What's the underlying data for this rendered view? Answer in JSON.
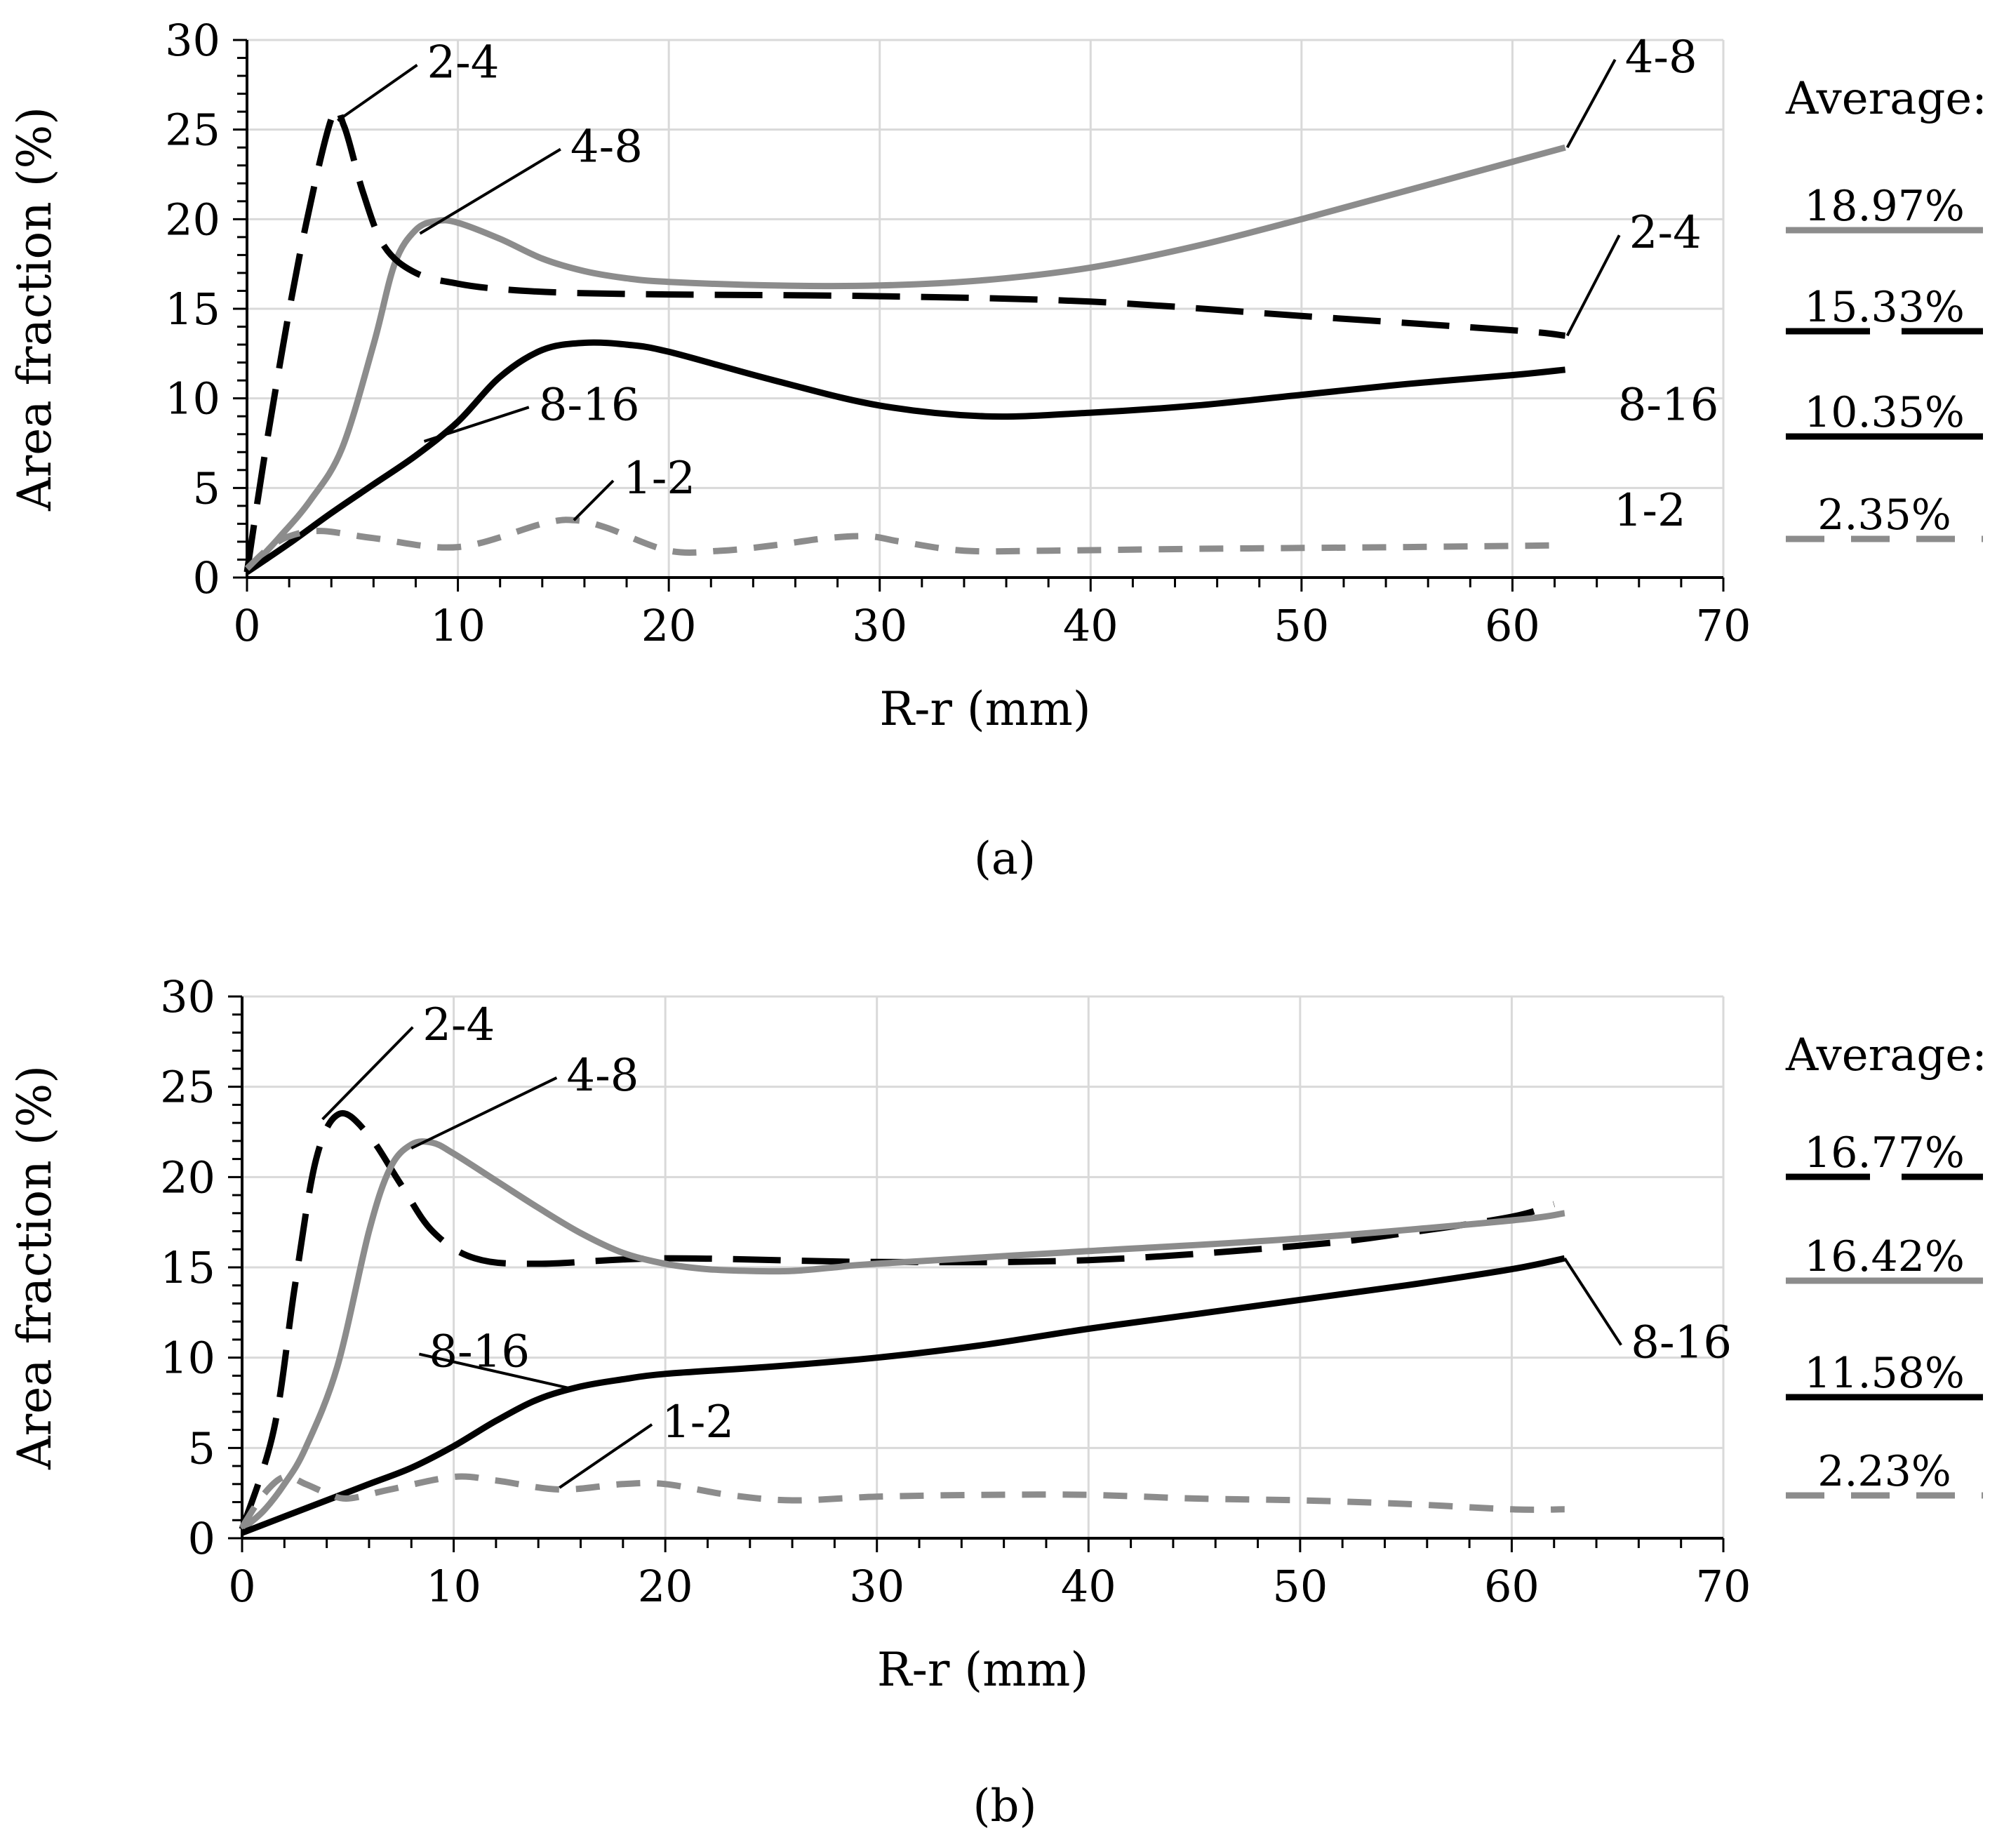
{
  "figure": {
    "subfigures": [
      "(a)",
      "(b)"
    ]
  },
  "colors": {
    "gray": "#8c8c8c",
    "black": "#000000",
    "grid": "#d9d9d9"
  },
  "chart_data": [
    {
      "id": "a",
      "panel_label": "(a)",
      "type": "line",
      "xlabel": "R-r (mm)",
      "ylabel": "Area fraction (%)",
      "xlim": [
        0,
        70
      ],
      "ylim": [
        0,
        30
      ],
      "xticks": [
        0,
        10,
        20,
        30,
        40,
        50,
        60,
        70
      ],
      "yticks": [
        0,
        5,
        10,
        15,
        20,
        25,
        30
      ],
      "grid": true,
      "average_title": "Average:",
      "series": [
        {
          "name": "4-8",
          "color": "#8c8c8c",
          "dash": "solid",
          "average": "18.97%",
          "x": [
            0,
            1.5,
            3,
            4.5,
            6,
            7,
            8,
            9,
            10,
            12,
            14,
            16,
            18,
            20,
            25,
            30,
            35,
            40,
            45,
            50,
            55,
            60,
            62.5
          ],
          "y": [
            0.3,
            2.2,
            4.3,
            7.2,
            13,
            17.5,
            19.4,
            19.9,
            19.8,
            18.9,
            17.8,
            17.1,
            16.7,
            16.5,
            16.3,
            16.3,
            16.6,
            17.3,
            18.5,
            20,
            21.6,
            23.2,
            24
          ]
        },
        {
          "name": "2-4",
          "color": "#000000",
          "dash": "long",
          "average": "15.33%",
          "x": [
            0,
            1,
            2.5,
            4,
            4.6,
            5.5,
            6.5,
            8,
            10,
            12,
            15,
            20,
            30,
            40,
            50,
            60,
            62.5
          ],
          "y": [
            0.3,
            8,
            18,
            25.6,
            25.2,
            21.5,
            18.5,
            17,
            16.4,
            16.1,
            15.9,
            15.8,
            15.7,
            15.4,
            14.6,
            13.8,
            13.5
          ]
        },
        {
          "name": "8-16",
          "color": "#000000",
          "dash": "solid",
          "average": "10.35%",
          "x": [
            0,
            2,
            4,
            6,
            8,
            10,
            12,
            14,
            16,
            18,
            20,
            25,
            30,
            35,
            40,
            45,
            50,
            55,
            60,
            62.5
          ],
          "y": [
            0.3,
            1.9,
            3.6,
            5.2,
            6.8,
            8.7,
            11.2,
            12.7,
            13.1,
            13,
            12.6,
            11,
            9.6,
            9,
            9.2,
            9.6,
            10.2,
            10.8,
            11.3,
            11.6
          ]
        },
        {
          "name": "1-2",
          "color": "#8c8c8c",
          "dash": "short",
          "average": "2.35%",
          "x": [
            0,
            1,
            2,
            3.5,
            6,
            10,
            14,
            15.5,
            17,
            20,
            22.5,
            25,
            27.5,
            29.5,
            31,
            34,
            38,
            45,
            55,
            62.5
          ],
          "y": [
            0.5,
            1.6,
            2.3,
            2.6,
            2.2,
            1.7,
            3,
            3.2,
            2.8,
            1.5,
            1.5,
            1.8,
            2.2,
            2.3,
            2,
            1.5,
            1.5,
            1.6,
            1.7,
            1.8
          ]
        }
      ],
      "annotations": [
        {
          "text": "2-4",
          "series": "2-4",
          "anchor_x": 4.3,
          "anchor_y": 25.5,
          "label_x": 8.2,
          "label_y": 27.9
        },
        {
          "text": "4-8",
          "series": "4-8",
          "anchor_x": 8.2,
          "anchor_y": 19.2,
          "label_x": 15,
          "label_y": 23.2
        },
        {
          "text": "8-16",
          "series": "8-16",
          "anchor_x": 8.4,
          "anchor_y": 7.6,
          "label_x": 13.5,
          "label_y": 8.8
        },
        {
          "text": "1-2",
          "series": "1-2",
          "anchor_x": 15.5,
          "anchor_y": 3.2,
          "label_x": 17.5,
          "label_y": 4.7
        },
        {
          "text": "4-8",
          "series": "4-8",
          "anchor_x": 62.6,
          "anchor_y": 24,
          "label_x": 65,
          "label_y": 28.2
        },
        {
          "text": "2-4",
          "series": "2-4",
          "anchor_x": 62.6,
          "anchor_y": 13.5,
          "label_x": 65.2,
          "label_y": 18.4
        },
        {
          "text": "8-16",
          "series": "8-16",
          "anchor_x": null,
          "anchor_y": null,
          "label_x": 65,
          "label_y": 8.8
        },
        {
          "text": "1-2",
          "series": "1-2",
          "anchor_x": null,
          "anchor_y": null,
          "label_x": 64.8,
          "label_y": 2.9
        }
      ]
    },
    {
      "id": "b",
      "panel_label": "(b)",
      "type": "line",
      "xlabel": "R-r (mm)",
      "ylabel": "Area fraction (%)",
      "xlim": [
        0,
        70
      ],
      "ylim": [
        0,
        30
      ],
      "xticks": [
        0,
        10,
        20,
        30,
        40,
        50,
        60,
        70
      ],
      "yticks": [
        0,
        5,
        10,
        15,
        20,
        25,
        30
      ],
      "grid": true,
      "average_title": "Average:",
      "series": [
        {
          "name": "2-4",
          "color": "#000000",
          "dash": "long",
          "average": "16.77%",
          "x": [
            0,
            1.5,
            2.5,
            3.5,
            4.6,
            6,
            7.5,
            9,
            11,
            14,
            20,
            30,
            40,
            50,
            55,
            60,
            62
          ],
          "y": [
            0.5,
            6,
            14,
            21,
            23.5,
            22.3,
            19.6,
            17,
            15.5,
            15.2,
            15.5,
            15.3,
            15.4,
            16.2,
            16.9,
            17.8,
            18.5
          ]
        },
        {
          "name": "4-8",
          "color": "#8c8c8c",
          "dash": "solid",
          "average": "16.42%",
          "x": [
            0,
            1,
            2,
            3,
            4.5,
            6,
            7,
            8,
            9,
            10,
            12,
            14,
            16,
            18,
            20,
            22,
            24,
            26,
            28,
            30,
            40,
            50,
            60,
            62.5
          ],
          "y": [
            0.5,
            1.5,
            3,
            5,
            9.5,
            17,
            20.5,
            21.8,
            21.9,
            21.3,
            19.8,
            18.3,
            16.9,
            15.8,
            15.2,
            14.9,
            14.8,
            14.8,
            15,
            15.2,
            15.9,
            16.6,
            17.6,
            18
          ]
        },
        {
          "name": "8-16",
          "color": "#000000",
          "dash": "solid",
          "average": "11.58%",
          "x": [
            0,
            2,
            4,
            6,
            8,
            10,
            12,
            14,
            16,
            18,
            20,
            25,
            30,
            35,
            40,
            45,
            50,
            55,
            60,
            62.5
          ],
          "y": [
            0.3,
            1.2,
            2.1,
            3,
            3.9,
            5.1,
            6.5,
            7.7,
            8.4,
            8.8,
            9.1,
            9.5,
            10,
            10.7,
            11.6,
            12.4,
            13.2,
            14,
            14.9,
            15.5
          ]
        },
        {
          "name": "1-2",
          "color": "#8c8c8c",
          "dash": "short",
          "average": "2.23%",
          "x": [
            0,
            1,
            2,
            3,
            4,
            5,
            7,
            10,
            12,
            15,
            18,
            20,
            23,
            26,
            30,
            35,
            40,
            45,
            50,
            55,
            60,
            62.5
          ],
          "y": [
            0.6,
            2.4,
            3.4,
            3,
            2.5,
            2.2,
            2.7,
            3.4,
            3.2,
            2.7,
            3,
            3,
            2.4,
            2.1,
            2.3,
            2.4,
            2.4,
            2.2,
            2.1,
            1.9,
            1.6,
            1.6
          ]
        }
      ],
      "annotations": [
        {
          "text": "2-4",
          "series": "2-4",
          "anchor_x": 3.8,
          "anchor_y": 23.2,
          "label_x": 8.2,
          "label_y": 27.6
        },
        {
          "text": "4-8",
          "series": "4-8",
          "anchor_x": 8,
          "anchor_y": 21.6,
          "label_x": 15,
          "label_y": 24.8
        },
        {
          "text": "8-16",
          "series": "8-16",
          "anchor_x": 15.5,
          "anchor_y": 8.3,
          "label_x": 8.5,
          "label_y": 9.5
        },
        {
          "text": "1-2",
          "series": "1-2",
          "anchor_x": 15,
          "anchor_y": 2.8,
          "label_x": 19.5,
          "label_y": 5.6
        },
        {
          "text": "8-16",
          "series": "8-16",
          "anchor_x": 62.5,
          "anchor_y": 15.5,
          "label_x": 65.3,
          "label_y": 10
        }
      ]
    }
  ]
}
